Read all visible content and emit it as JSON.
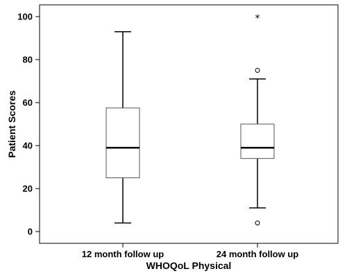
{
  "chart_data": {
    "type": "boxplot",
    "xlabel": "WHOQoL Physical",
    "ylabel": "Patient Scores",
    "ylim": [
      -5,
      105
    ],
    "yticks": [
      0,
      20,
      40,
      60,
      80,
      100
    ],
    "categories": [
      "12 month follow up",
      "24 month follow up"
    ],
    "boxes": [
      {
        "category": "12 month follow up",
        "whisker_low": 4,
        "q1": 25,
        "median": 39,
        "q3": 57.5,
        "whisker_high": 93,
        "outliers": [],
        "extremes": []
      },
      {
        "category": "24 month follow up",
        "whisker_low": 11,
        "q1": 34,
        "median": 39,
        "q3": 50,
        "whisker_high": 71,
        "outliers": [
          75,
          4
        ],
        "extremes": [
          100
        ]
      }
    ],
    "outlier_symbol": "o",
    "extreme_symbol": "*"
  }
}
